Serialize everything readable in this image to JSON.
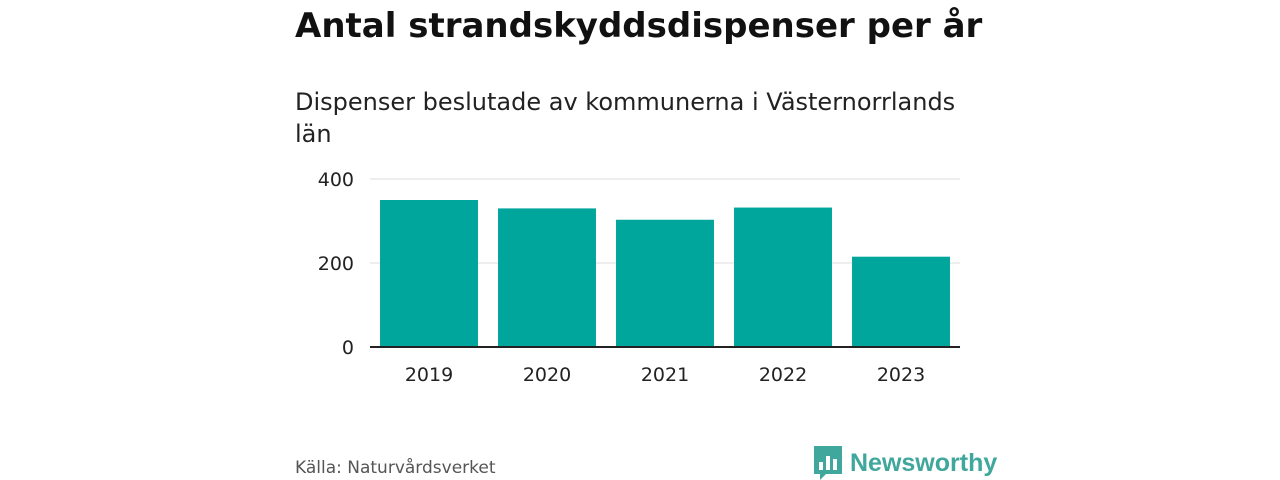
{
  "header": {
    "title": "Antal strandskyddsdispenser per år",
    "subtitle": "Dispenser beslutade av kommunerna i Västernorrlands län"
  },
  "footer": {
    "source": "Källa: Naturvårdsverket",
    "brand": "Newsworthy",
    "brand_color": "#3fa79b"
  },
  "chart_data": {
    "type": "bar",
    "title": "Antal strandskyddsdispenser per år",
    "subtitle": "Dispenser beslutade av kommunerna i Västernorrlands län",
    "xlabel": "",
    "ylabel": "",
    "categories": [
      "2019",
      "2020",
      "2021",
      "2022",
      "2023"
    ],
    "values": [
      350,
      330,
      303,
      332,
      215
    ],
    "ylim": [
      0,
      400
    ],
    "yticks": [
      0,
      200,
      400
    ],
    "grid": true,
    "legend": "none",
    "bar_color": "#00a59b",
    "axis_color": "#222222",
    "grid_color": "#dddddd"
  }
}
